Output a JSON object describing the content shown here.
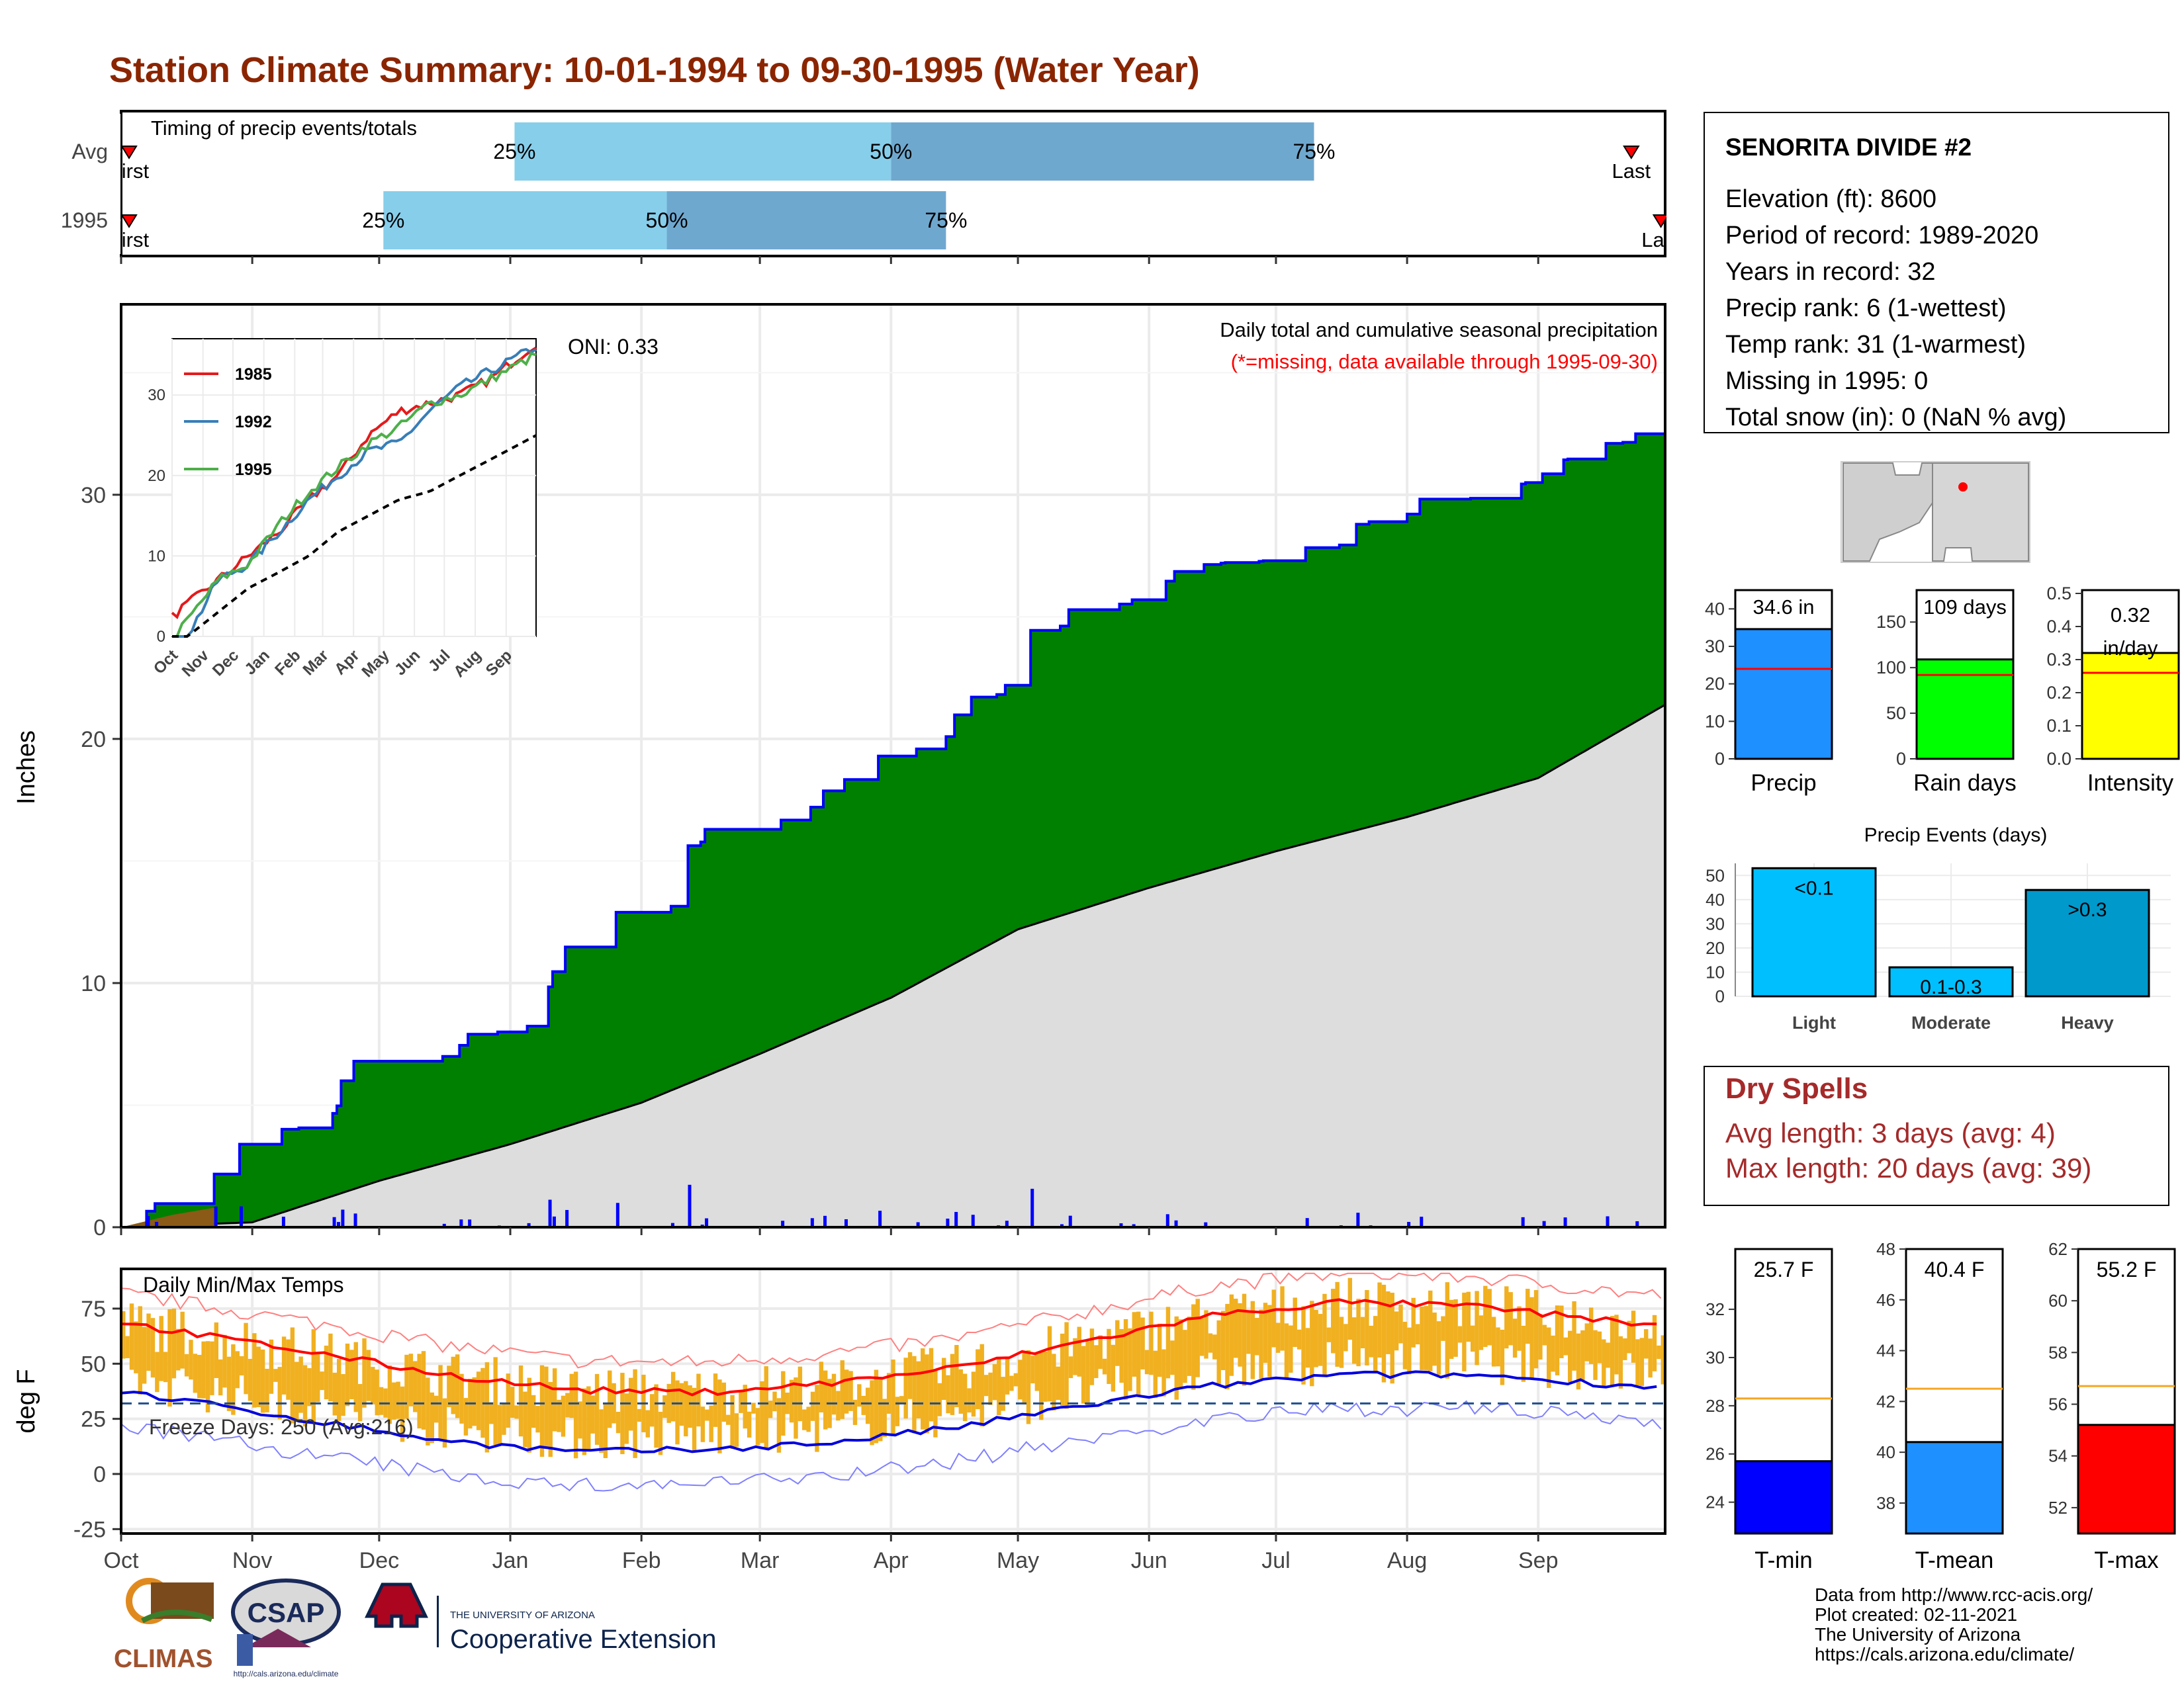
{
  "title": "Station Climate Summary: 10-01-1994 to 09-30-1995 (Water Year)",
  "timing": {
    "label": "Timing of precip events/totals",
    "rows": [
      "Avg",
      "1995"
    ],
    "pct_labels": [
      "25%",
      "50%",
      "75%"
    ],
    "first_label": "First",
    "last_label": "Last",
    "avg": {
      "first_day": 0,
      "p25": 93,
      "p50": 182,
      "p75": 282,
      "last_day": 357
    },
    "y1995": {
      "first_day": 0,
      "p25": 62,
      "p50": 129,
      "p75": 195,
      "last_day": 364
    }
  },
  "main": {
    "ylabel": "Inches",
    "yticks": [
      0,
      10,
      20,
      30
    ],
    "ylim": [
      0,
      37.8
    ],
    "oni": "ONI: 0.33",
    "header": "Daily total and cumulative seasonal precipitation",
    "missing_note": "(*=missing, data available through 1995-09-30)",
    "colors": {
      "above": "#008000",
      "avg_fill": "#dddddd",
      "cum_line": "#0000ff",
      "daily": "#0000ff",
      "below": "#8b5a16"
    }
  },
  "inset": {
    "xticks": [
      "Oct",
      "Nov",
      "Dec",
      "Jan",
      "Feb",
      "Mar",
      "Apr",
      "May",
      "Jun",
      "Jul",
      "Aug",
      "Sep"
    ],
    "yticks": [
      0,
      10,
      20,
      30
    ],
    "legend": [
      {
        "name": "1985",
        "color": "#e41a1c"
      },
      {
        "name": "1992",
        "color": "#377eb8"
      },
      {
        "name": "1995",
        "color": "#4daf4a"
      }
    ]
  },
  "temps": {
    "label": "Daily Min/Max Temps",
    "ylabel": "deg F",
    "yticks": [
      -25,
      0,
      25,
      50,
      75
    ],
    "freeze": "Freeze Days: 250 (Avg:216)",
    "freeze_line": 32
  },
  "months": [
    "Oct",
    "Nov",
    "Dec",
    "Jan",
    "Feb",
    "Mar",
    "Apr",
    "May",
    "Jun",
    "Jul",
    "Aug",
    "Sep"
  ],
  "station": {
    "name": "SENORITA DIVIDE #2",
    "lines": [
      "Elevation (ft): 8600",
      "Period of record: 1989-2020",
      "Years in record: 32",
      "Precip rank: 6 (1-wettest)",
      "Temp rank: 31 (1-warmest)",
      "Missing in 1995: 0",
      "Total snow (in): 0 (NaN % avg)"
    ]
  },
  "summary_bars": [
    {
      "name": "Precip",
      "label": "34.6 in",
      "value": 34.6,
      "avg": 24.0,
      "color": "#1e90ff",
      "ymax": 45,
      "yticks": [
        0,
        10,
        20,
        30,
        40
      ]
    },
    {
      "name": "Rain days",
      "label": "109 days",
      "value": 109,
      "avg": 92,
      "color": "#00ff00",
      "ymax": 185,
      "yticks": [
        0,
        50,
        100,
        150
      ]
    },
    {
      "name": "Intensity",
      "label": "0.32 in/day",
      "label_top": "0.32",
      "label_bottom": "in/day",
      "value": 0.32,
      "avg": 0.26,
      "color": "#ffff00",
      "ymax": 0.51,
      "yticks": [
        "0.0",
        "0.1",
        "0.2",
        "0.3",
        "0.4",
        "0.5"
      ]
    }
  ],
  "events": {
    "title": "Precip Events (days)",
    "categories": [
      "Light",
      "Moderate",
      "Heavy"
    ],
    "labels": [
      "<0.1",
      "0.1-0.3",
      ">0.3"
    ],
    "values": [
      53,
      12,
      44
    ],
    "colors": [
      "#00bfff",
      "#00bfff",
      "#0099cc"
    ],
    "yticks": [
      0,
      10,
      20,
      30,
      40,
      50
    ]
  },
  "dry": {
    "title": "Dry Spells",
    "avg": "Avg length: 3 days (avg: 4)",
    "max": "Max length: 20 days (avg: 39)"
  },
  "temp_bars": [
    {
      "name": "T-min",
      "label": "25.7 F",
      "value": 25.7,
      "avg": 28.3,
      "color": "#0000ff",
      "ymin": 22.7,
      "ymax": 34.5,
      "yticks": [
        24,
        26,
        28,
        30,
        32
      ]
    },
    {
      "name": "T-mean",
      "label": "40.4 F",
      "value": 40.4,
      "avg": 42.5,
      "color": "#1e90ff",
      "ymin": 36.8,
      "ymax": 48,
      "yticks": [
        38,
        40,
        42,
        44,
        46,
        48
      ]
    },
    {
      "name": "T-max",
      "label": "55.2 F",
      "value": 55.2,
      "avg": 56.7,
      "color": "#ff0000",
      "ymin": 51,
      "ymax": 62,
      "yticks": [
        52,
        54,
        56,
        58,
        60,
        62
      ]
    }
  ],
  "credits": [
    "Data from http://www.rcc-acis.org/",
    "Plot created: 02-11-2021",
    "The University of Arizona",
    "https://cals.arizona.edu/climate/"
  ],
  "logos": {
    "climas": "CLIMAS",
    "csap": "CSAP",
    "csap_url": "http://cals.arizona.edu/climate",
    "ua_small": "THE UNIVERSITY OF ARIZONA",
    "ua_big": "Cooperative Extension"
  },
  "chart_data": [
    {
      "type": "area",
      "title": "Daily total and cumulative seasonal precipitation",
      "ylabel": "Inches",
      "ylim": [
        0,
        37.8
      ],
      "x": [
        "Oct",
        "Nov",
        "Dec",
        "Jan",
        "Feb",
        "Mar",
        "Apr",
        "May",
        "Jun",
        "Jul",
        "Aug",
        "Sep"
      ],
      "series": [
        {
          "name": "1995",
          "values": [
            3.4,
            6.8,
            8.0,
            12.9,
            16.3,
            19.3,
            22.2,
            25.7,
            27.3,
            28.9,
            30.5,
            32.5
          ]
        },
        {
          "values": [
            0.2,
            1.9,
            3.4,
            5.1,
            7.1,
            9.4,
            12.2,
            13.9,
            15.4,
            16.8,
            18.4,
            21.4
          ]
        }
      ]
    },
    {
      "type": "line",
      "xlabel": "",
      "ylabel": "",
      "ylim": [
        0,
        37
      ],
      "x": [
        "Oct",
        "Nov",
        "Dec",
        "Jan",
        "Feb",
        "Mar",
        "Apr",
        "May",
        "Jun",
        "Jul",
        "Aug",
        "Sep"
      ],
      "series": [
        {
          "name": "1985",
          "values": [
            4,
            7,
            10,
            13,
            17,
            20,
            25,
            28,
            29,
            30,
            32,
            35
          ]
        },
        {
          "name": "1992",
          "values": [
            0,
            7,
            9,
            13,
            17,
            20,
            23,
            24,
            28,
            31,
            33,
            35
          ]
        },
        {
          "name": "1995",
          "values": [
            2,
            7,
            9,
            14,
            18,
            21,
            24,
            26,
            29,
            30,
            32,
            34
          ]
        },
        {
          "values": [
            0,
            3,
            6,
            8,
            10,
            13,
            15,
            17,
            18,
            20,
            22,
            24
          ]
        }
      ]
    },
    {
      "type": "line",
      "title": "Daily Min/Max Temps",
      "ylabel": "deg F",
      "ylim": [
        -27,
        93
      ],
      "x": [
        "Oct",
        "Nov",
        "Dec",
        "Jan",
        "Feb",
        "Mar",
        "Apr",
        "May",
        "Jun",
        "Jul",
        "Aug",
        "Sep"
      ],
      "series": [
        {
          "values": [
            64,
            55,
            45,
            38,
            37,
            41,
            48,
            60,
            72,
            78,
            76,
            70
          ]
        },
        {
          "values": [
            33,
            24,
            15,
            10,
            11,
            14,
            21,
            31,
            40,
            45,
            45,
            41
          ]
        }
      ]
    }
  ]
}
